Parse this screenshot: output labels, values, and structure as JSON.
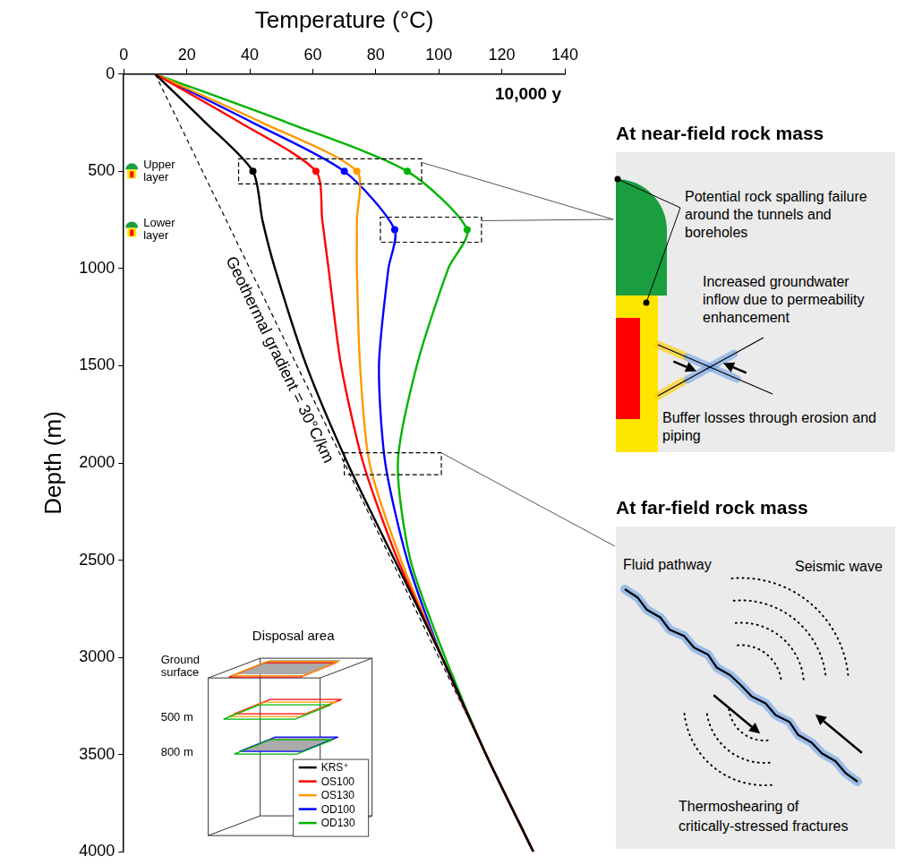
{
  "chart_data": {
    "type": "line",
    "x_label": "Temperature (°C)",
    "y_label": "Depth (m)",
    "time_label": "10,000 y",
    "xlim": [
      0,
      140
    ],
    "xticks": [
      0,
      20,
      40,
      60,
      80,
      100,
      120,
      140
    ],
    "ylim": [
      4000,
      0
    ],
    "yticks": [
      0,
      500,
      1000,
      1500,
      2000,
      2500,
      3000,
      3500,
      4000
    ],
    "grid": false,
    "legend": "bottom left",
    "marker": "circle",
    "series": [
      {
        "name": "KRS⁺",
        "color": "#000000",
        "x": [
          10,
          26,
          41,
          44,
          48,
          58,
          71,
          86,
          101,
          115,
          130
        ],
        "y": [
          0,
          250,
          500,
          750,
          1000,
          1500,
          2000,
          2500,
          3000,
          3500,
          4000
        ]
      },
      {
        "name": "OS100",
        "color": "#ff0000",
        "x": [
          10,
          37,
          61,
          63,
          65,
          69,
          76,
          87,
          101,
          115,
          130
        ],
        "y": [
          0,
          250,
          500,
          750,
          1000,
          1500,
          2000,
          2500,
          3000,
          3500,
          4000
        ]
      },
      {
        "name": "OS130",
        "color": "#ff9900",
        "x": [
          10,
          44,
          74,
          74,
          74,
          75,
          78,
          88,
          101,
          115,
          130
        ],
        "y": [
          0,
          250,
          500,
          750,
          1000,
          1500,
          2000,
          2500,
          3000,
          3500,
          4000
        ]
      },
      {
        "name": "OD100",
        "color": "#0000ff",
        "x": [
          10,
          41,
          70,
          86,
          84,
          81,
          83,
          90,
          101,
          115,
          130
        ],
        "y": [
          0,
          250,
          500,
          800,
          1000,
          1500,
          2000,
          2500,
          3000,
          3500,
          4000
        ]
      },
      {
        "name": "OD130",
        "color": "#00b400",
        "x": [
          10,
          52,
          90,
          109,
          103,
          93,
          87,
          91,
          102,
          115,
          130
        ],
        "y": [
          0,
          250,
          500,
          800,
          1000,
          1500,
          2000,
          2500,
          3000,
          3500,
          4000
        ]
      }
    ],
    "reference_line": {
      "label": "Geothermal gradient = 30°C/km",
      "color": "#000000",
      "line_style": "dashed",
      "x": [
        10,
        130
      ],
      "y": [
        0,
        4000
      ]
    },
    "layers": [
      {
        "label": "Upper layer",
        "depth": 500
      },
      {
        "label": "Lower layer",
        "depth": 800
      }
    ],
    "inset": {
      "title": "Disposal area",
      "labels": [
        "Ground surface",
        "500 m",
        "800 m"
      ]
    }
  },
  "panels": [
    {
      "title": "At near-field rock mass",
      "labels": [
        "Potential rock spalling failure around the tunnels and boreholes",
        "Increased groundwater inflow due to permeability enhancement",
        "Buffer losses through erosion and piping"
      ]
    },
    {
      "title": "At far-field rock mass",
      "labels": [
        "Fluid pathway",
        "Seismic wave",
        "Thermoshearing of critically-stressed fractures"
      ]
    }
  ]
}
